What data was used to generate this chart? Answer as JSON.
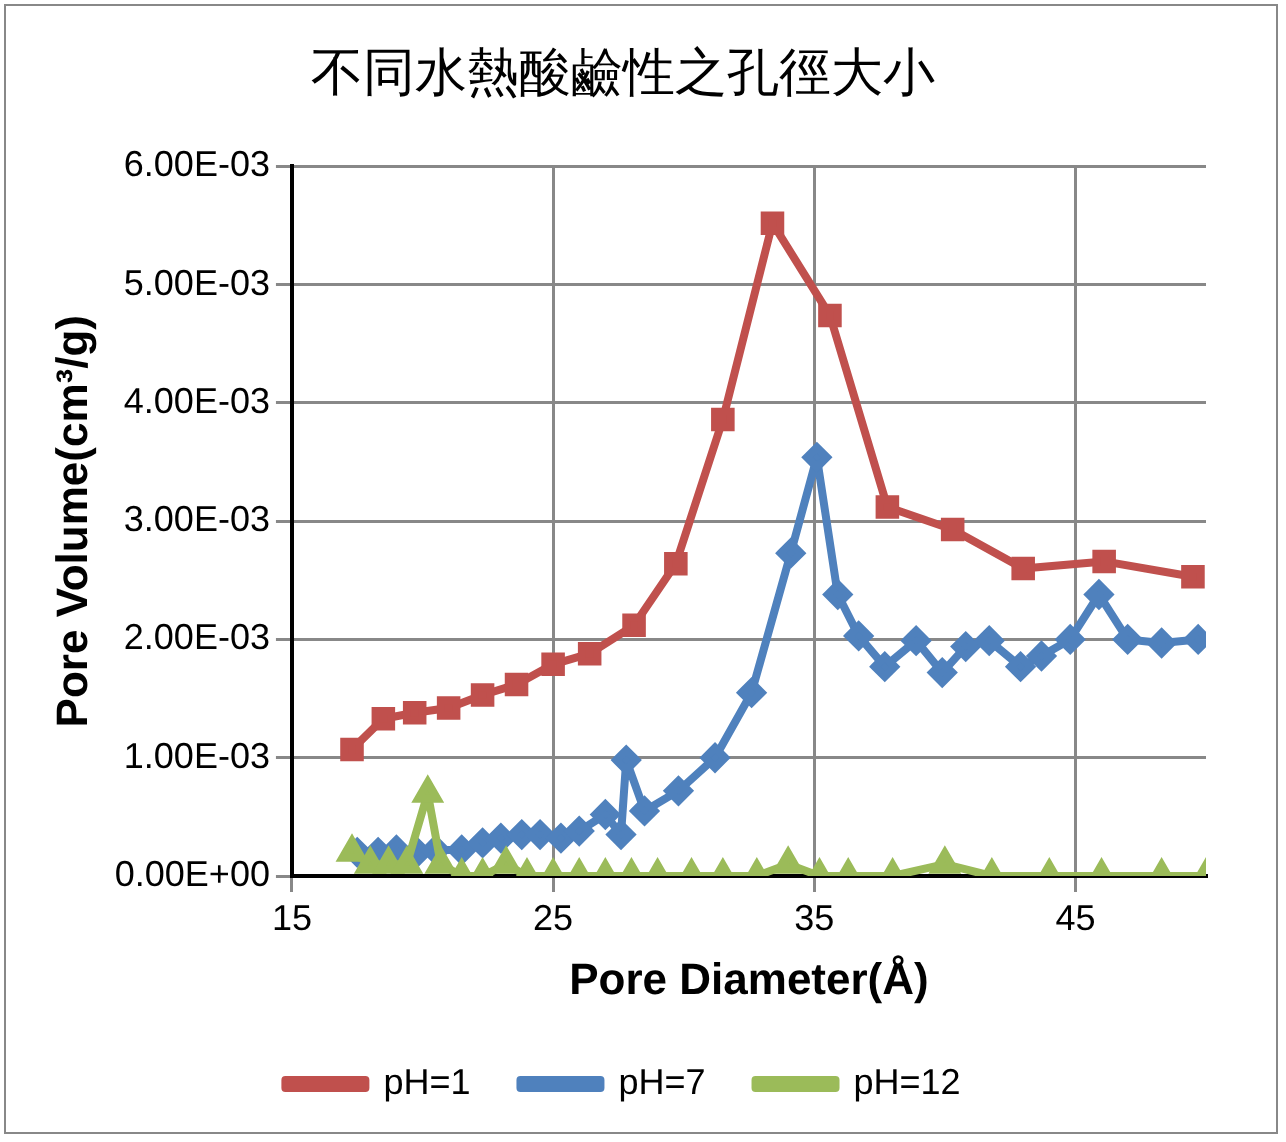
{
  "chart_data": {
    "type": "line",
    "title": "不同水熱酸鹼性之孔徑大小",
    "xlabel": "Pore Diameter(Å)",
    "ylabel": "Pore Volume(cm³/g)",
    "xlim": [
      15,
      50
    ],
    "xticks": [
      15,
      25,
      35,
      45
    ],
    "ylim": [
      0,
      0.006
    ],
    "yticks": [
      {
        "value": 0,
        "label": "0.00E+00"
      },
      {
        "value": 0.001,
        "label": "1.00E-03"
      },
      {
        "value": 0.002,
        "label": "2.00E-03"
      },
      {
        "value": 0.003,
        "label": "3.00E-03"
      },
      {
        "value": 0.004,
        "label": "4.00E-03"
      },
      {
        "value": 0.005,
        "label": "5.00E-03"
      },
      {
        "value": 0.006,
        "label": "6.00E-03"
      }
    ],
    "grid": true,
    "legend": "bottom",
    "line_style": "solid",
    "series": [
      {
        "name": "pH=1",
        "color": "#c0504d",
        "marker": "square",
        "x": [
          17.3,
          18.5,
          19.7,
          21.0,
          22.3,
          23.6,
          25.0,
          26.4,
          28.1,
          29.7,
          31.5,
          33.4,
          35.6,
          37.8,
          40.3,
          43.0,
          46.1,
          49.5
        ],
        "values": [
          0.00107,
          0.00133,
          0.00138,
          0.00142,
          0.00153,
          0.00162,
          0.00179,
          0.00188,
          0.00212,
          0.00264,
          0.00386,
          0.00552,
          0.00474,
          0.00312,
          0.00293,
          0.0026,
          0.00266,
          0.00253
        ]
      },
      {
        "name": "pH=7",
        "color": "#4f81bd",
        "marker": "diamond",
        "x": [
          17.5,
          18.3,
          19.0,
          19.8,
          20.5,
          21.5,
          22.3,
          23.0,
          23.8,
          24.5,
          25.3,
          26.0,
          27.0,
          27.6,
          27.8,
          28.5,
          29.8,
          31.2,
          32.6,
          34.1,
          35.1,
          35.9,
          36.7,
          37.7,
          38.9,
          39.9,
          40.8,
          41.7,
          42.9,
          43.7,
          44.8,
          45.9,
          47.0,
          48.3,
          49.7
        ],
        "values": [
          0.0002,
          0.0002,
          0.00022,
          0.0002,
          0.00022,
          0.00022,
          0.00028,
          0.00032,
          0.00035,
          0.00035,
          0.00032,
          0.00038,
          0.00052,
          0.00035,
          0.00098,
          0.00055,
          0.00072,
          0.001,
          0.00155,
          0.00273,
          0.00354,
          0.00238,
          0.00203,
          0.00177,
          0.00199,
          0.00172,
          0.00194,
          0.00199,
          0.00177,
          0.00186,
          0.002,
          0.00238,
          0.002,
          0.00197,
          0.002
        ]
      },
      {
        "name": "pH=12",
        "color": "#9bbb59",
        "marker": "triangle",
        "x": [
          17.3,
          18.0,
          18.7,
          19.4,
          20.2,
          20.7,
          21.5,
          22.3,
          23.2,
          24.0,
          25.0,
          26.0,
          27.0,
          28.0,
          29.0,
          30.3,
          31.5,
          32.8,
          34.0,
          35.2,
          36.3,
          38.0,
          40.0,
          41.8,
          44.0,
          46.0,
          48.3,
          50.0
        ],
        "values": [
          0.0002,
          0.0001,
          0.0001,
          0.0001,
          0.0007,
          0.0001,
          0,
          0,
          0.0001,
          0,
          0,
          0,
          0,
          0,
          0,
          0,
          0,
          0,
          0.0001,
          0,
          0,
          0,
          0.0001,
          0,
          0,
          0,
          0,
          0
        ]
      }
    ]
  }
}
